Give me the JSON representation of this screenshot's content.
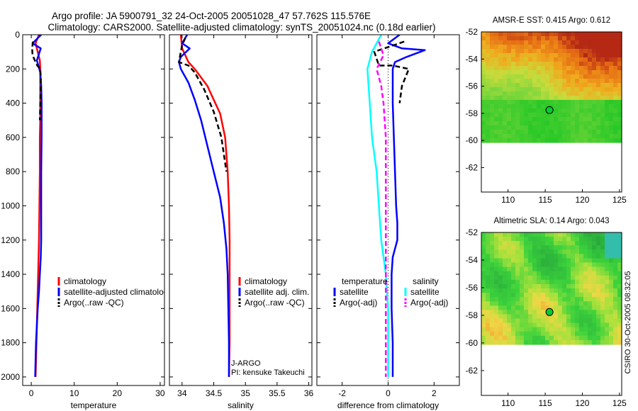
{
  "header": {
    "line1": "Argo profile: JA 5900791_32 24-Oct-2005 20051028_47 57.762S 115.576E",
    "line2": "Climatology: CARS2000. Satellite-adjusted climatology: synTS_20051024.nc (0.18d earlier)"
  },
  "side_credit": "CSIRO 30-Oct-2005 08:32:05",
  "colors": {
    "red": "#ff0000",
    "blue": "#0000ff",
    "black": "#000000",
    "cyan": "#00ffff",
    "magenta": "#ff00ff",
    "dot": "#00cc33"
  },
  "chart_data": [
    {
      "id": "temperature",
      "type": "line",
      "xlabel": "temperature",
      "ylabel": "",
      "xlim": [
        -2,
        31
      ],
      "ylim": [
        2050,
        0
      ],
      "y_reversed": true,
      "xticks": [
        0,
        10,
        20,
        30
      ],
      "xtick_labels": [
        "0",
        "10",
        "20",
        "30"
      ],
      "yticks": [
        0,
        200,
        400,
        600,
        800,
        1000,
        1200,
        1400,
        1600,
        1800,
        2000
      ],
      "ytick_labels": [
        "0",
        "200",
        "400",
        "600",
        "800",
        "1000",
        "1200",
        "1400",
        "1600",
        "1800",
        "2000"
      ],
      "legend": {
        "placement": "lower-right",
        "entries": [
          {
            "label": "climatology",
            "color": "#ff0000",
            "dash": false
          },
          {
            "label": "satellite-adjusted climatology",
            "color": "#0000ff",
            "dash": false
          },
          {
            "label": "Argo(..raw -QC)",
            "color": "#000000",
            "dash": true
          }
        ]
      },
      "series": [
        {
          "color": "#ff0000",
          "dash": false,
          "width": 2,
          "x": [
            1.8,
            1.0,
            1.5,
            2.0,
            2.1,
            2.1,
            2.1,
            2.1,
            2.0,
            2.0,
            1.9,
            1.8,
            1.7,
            1.6,
            1.5,
            1.4,
            1.3,
            1.2,
            1.1,
            1.0
          ],
          "y": [
            0,
            50,
            100,
            150,
            200,
            300,
            400,
            500,
            600,
            800,
            1000,
            1200,
            1300,
            1400,
            1500,
            1600,
            1700,
            1800,
            1900,
            2000
          ]
        },
        {
          "color": "#0000ff",
          "dash": false,
          "width": 2,
          "x": [
            2.3,
            0.3,
            2.2,
            1.3,
            2.1,
            2.3,
            2.4,
            2.4,
            2.3,
            2.3,
            2.3,
            2.2,
            2.0,
            1.8,
            1.5,
            1.3,
            1.1,
            1.0,
            0.9
          ],
          "y": [
            0,
            50,
            80,
            150,
            220,
            300,
            400,
            600,
            800,
            1000,
            1200,
            1300,
            1400,
            1500,
            1600,
            1700,
            1800,
            1900,
            2000
          ]
        },
        {
          "color": "#000000",
          "dash": true,
          "width": 2,
          "x": [
            0.4,
            0.2,
            0.3,
            1.0,
            1.4,
            2.1,
            2.2,
            2.2,
            2.1,
            2.0
          ],
          "y": [
            40,
            80,
            120,
            160,
            180,
            200,
            250,
            300,
            400,
            500
          ]
        }
      ]
    },
    {
      "id": "salinity",
      "type": "line",
      "xlabel": "salinity",
      "ylabel": "",
      "xlim": [
        33.8,
        36.05
      ],
      "ylim": [
        2050,
        0
      ],
      "y_reversed": true,
      "xticks": [
        34,
        34.5,
        35,
        35.5,
        36
      ],
      "xtick_labels": [
        "34",
        "34.5",
        "35",
        "35.5",
        "36"
      ],
      "yticks": [
        0,
        200,
        400,
        600,
        800,
        1000,
        1200,
        1400,
        1600,
        1800,
        2000
      ],
      "ytick_labels": [
        "",
        "",
        "",
        "",
        "",
        "",
        "",
        "",
        "",
        "",
        ""
      ],
      "legend": {
        "placement": "lower-right",
        "entries": [
          {
            "label": "climatology",
            "color": "#ff0000",
            "dash": false
          },
          {
            "label": "satellite adj. clim.",
            "color": "#0000ff",
            "dash": false
          },
          {
            "label": "Argo(..raw -QC)",
            "color": "#000000",
            "dash": true
          }
        ]
      },
      "series": [
        {
          "color": "#ff0000",
          "dash": false,
          "width": 2,
          "x": [
            33.98,
            34.0,
            34.1,
            34.2,
            34.3,
            34.4,
            34.5,
            34.6,
            34.68,
            34.72,
            34.74,
            34.75,
            34.75,
            34.75,
            34.74
          ],
          "y": [
            0,
            80,
            160,
            200,
            250,
            300,
            380,
            460,
            600,
            800,
            1000,
            1200,
            1500,
            1800,
            2000
          ]
        },
        {
          "color": "#0000ff",
          "dash": false,
          "width": 2,
          "x": [
            34.08,
            34.0,
            34.12,
            33.98,
            33.95,
            33.98,
            34.1,
            34.2,
            34.3,
            34.4,
            34.5,
            34.6,
            34.66,
            34.7,
            34.72,
            34.73,
            34.74,
            34.74
          ],
          "y": [
            0,
            50,
            80,
            130,
            160,
            200,
            280,
            380,
            500,
            650,
            800,
            950,
            1100,
            1250,
            1400,
            1600,
            1800,
            2000
          ]
        },
        {
          "color": "#000000",
          "dash": true,
          "width": 2,
          "x": [
            34.05,
            34.0,
            33.95,
            34.1,
            34.2,
            34.35,
            34.5,
            34.62,
            34.7
          ],
          "y": [
            20,
            60,
            160,
            180,
            220,
            320,
            450,
            600,
            800
          ]
        }
      ],
      "annotation": [
        "J-ARGO",
        "PI: kensuke Takeuchi"
      ]
    },
    {
      "id": "difference",
      "type": "line",
      "xlabel": "difference from climatology",
      "ylabel": "",
      "xlim": [
        -3.1,
        3.1
      ],
      "ylim": [
        2050,
        0
      ],
      "y_reversed": true,
      "xticks": [
        -2,
        0,
        2
      ],
      "xtick_labels": [
        "-2",
        "0",
        "2"
      ],
      "yticks": [
        0,
        200,
        400,
        600,
        800,
        1000,
        1200,
        1400,
        1600,
        1800,
        2000
      ],
      "ytick_labels": [
        "",
        "",
        "",
        "",
        "",
        "",
        "",
        "",
        "",
        "",
        ""
      ],
      "legend": {
        "placement": "lower-right",
        "headers": [
          "temperature",
          "salinity"
        ],
        "entries": [
          {
            "label": "satellite",
            "color": "#0000ff",
            "dash": false
          },
          {
            "label": "Argo(-adj)",
            "color": "#000000",
            "dash": true
          },
          {
            "label": "satellite",
            "color": "#00ffff",
            "dash": false
          },
          {
            "label": "Argo(-adj)",
            "color": "#ff00ff",
            "dash": true
          }
        ]
      },
      "series": [
        {
          "color": "#0000ff",
          "dash": false,
          "width": 2,
          "x": [
            0.5,
            0.0,
            0.6,
            1.6,
            0.8,
            0.3,
            0.2,
            0.2,
            0.25,
            0.3,
            0.35,
            0.4,
            0.4,
            0.2,
            0.15,
            0.15,
            0.2,
            0.2
          ],
          "y": [
            0,
            50,
            80,
            90,
            130,
            160,
            200,
            400,
            600,
            800,
            1000,
            1100,
            1200,
            1300,
            1400,
            1600,
            1800,
            2000
          ]
        },
        {
          "color": "#000000",
          "dash": true,
          "width": 2,
          "x": [
            0.7,
            -0.6,
            -0.4,
            0.2,
            0.9,
            0.75,
            0.6,
            0.5
          ],
          "y": [
            40,
            100,
            180,
            180,
            200,
            250,
            300,
            400
          ]
        },
        {
          "color": "#00ffff",
          "dash": false,
          "width": 2,
          "x": [
            -0.3,
            -0.7,
            -0.9,
            -0.8,
            -0.7,
            -0.5,
            -0.4,
            -0.3,
            -0.1,
            0.0,
            0.0,
            0.0
          ],
          "y": [
            0,
            100,
            200,
            400,
            600,
            800,
            1000,
            1200,
            1400,
            1600,
            1800,
            2000
          ]
        },
        {
          "color": "#ff00ff",
          "dash": true,
          "width": 2,
          "x": [
            -0.4,
            -0.2,
            -0.5,
            -0.3,
            -0.2,
            -0.1,
            -0.1,
            -0.1,
            -0.1,
            -0.1
          ],
          "y": [
            40,
            120,
            200,
            300,
            400,
            600,
            800,
            1000,
            1500,
            2000
          ]
        }
      ]
    }
  ],
  "maps": [
    {
      "id": "amsr-e-sst",
      "title": "AMSR-E SST: 0.415 Argo: 0.612",
      "xticks": [
        "110",
        "115",
        "120",
        "125"
      ],
      "yticks": [
        "-52",
        "-54",
        "-56",
        "-58",
        "-60",
        "-62"
      ],
      "colormap": "sst",
      "marker": {
        "lon": 115.576,
        "lat": -57.762
      }
    },
    {
      "id": "altimetric-sla",
      "title": "Altimetric SLA: 0.14 Argo: 0.043",
      "xticks": [
        "110",
        "115",
        "120",
        "125"
      ],
      "yticks": [
        "-52",
        "-54",
        "-56",
        "-58",
        "-60",
        "-62"
      ],
      "colormap": "sla",
      "marker": {
        "lon": 115.576,
        "lat": -57.762
      }
    }
  ]
}
